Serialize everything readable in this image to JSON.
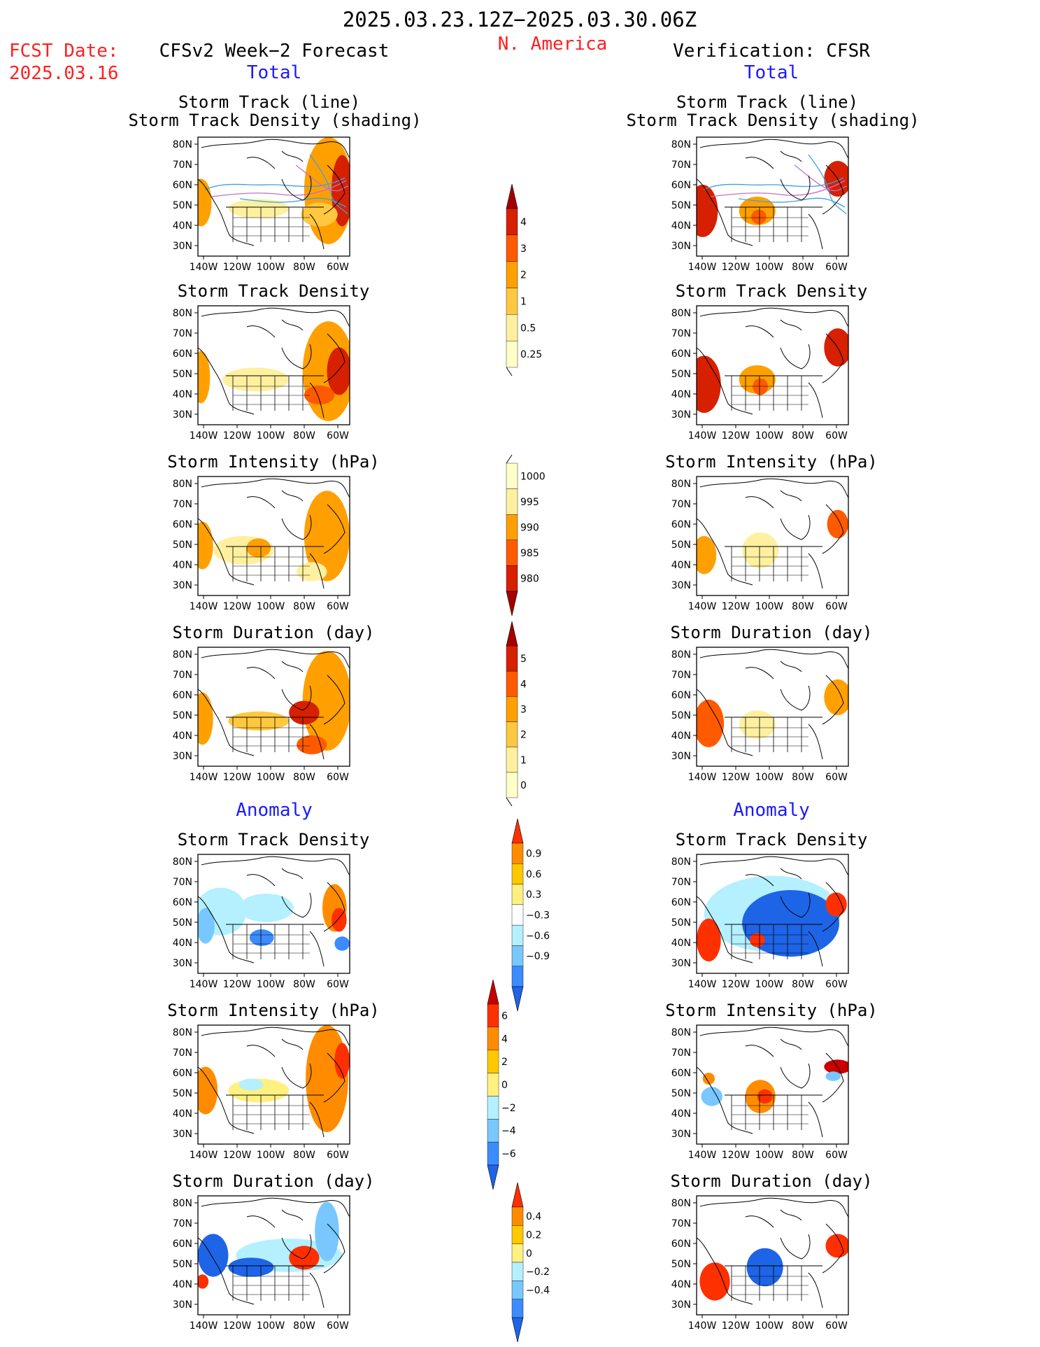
{
  "header": {
    "date_range": "2025.03.23.12Z−2025.03.30.06Z",
    "region": "N. America",
    "fcst_label": "FCST Date:",
    "fcst_date": "2025.03.16",
    "left_title": "CFSv2 Week−2 Forecast",
    "right_title": "Verification: CFSR",
    "total_label": "Total",
    "anomaly_label": "Anomaly"
  },
  "panel_titles": {
    "track_line": "Storm Track (line)",
    "track_shading": "Storm Track Density (shading)",
    "density": "Storm Track Density",
    "intensity": "Storm Intensity (hPa)",
    "duration": "Storm Duration (day)"
  },
  "axes": {
    "lat_labels": [
      "80N",
      "70N",
      "60N",
      "50N",
      "40N",
      "30N"
    ],
    "lon_labels": [
      "140W",
      "120W",
      "100W",
      "80W",
      "60W"
    ]
  },
  "colorbars": {
    "density_total": {
      "labels": [
        "4",
        "3",
        "2",
        "1",
        "0.5",
        "0.25"
      ],
      "colors": [
        "#a50000",
        "#d62000",
        "#ff5a00",
        "#ffa000",
        "#ffc840",
        "#fff0a0",
        "#ffffc8"
      ]
    },
    "intensity_total": {
      "labels": [
        "1000",
        "995",
        "990",
        "985",
        "980"
      ],
      "colors": [
        "#ffffc8",
        "#fff0a0",
        "#ffa000",
        "#ff5a00",
        "#d62000",
        "#a50000"
      ]
    },
    "duration_total": {
      "labels": [
        "5",
        "4",
        "3",
        "2",
        "1",
        "0"
      ],
      "colors": [
        "#a50000",
        "#d62000",
        "#ff5a00",
        "#ffa000",
        "#ffc840",
        "#fff0a0",
        "#ffffc8"
      ]
    },
    "density_anom": {
      "labels": [
        "0.9",
        "0.6",
        "0.3",
        "−0.3",
        "−0.6",
        "−0.9"
      ],
      "colors": [
        "#ff3000",
        "#ff8c00",
        "#ffc800",
        "#fff080",
        "#ffffff",
        "#b4f0ff",
        "#78c8ff",
        "#3c8cff",
        "#1e64e6"
      ]
    },
    "intensity_anom": {
      "labels": [
        "6",
        "4",
        "2",
        "0",
        "−2",
        "−4",
        "−6"
      ],
      "colors": [
        "#c80000",
        "#ff3000",
        "#ff8c00",
        "#ffc800",
        "#fff080",
        "#b4f0ff",
        "#78c8ff",
        "#3c8cff",
        "#1e64e6"
      ]
    },
    "duration_anom": {
      "labels": [
        "0.4",
        "0.2",
        "0",
        "−0.2",
        "−0.4"
      ],
      "colors": [
        "#ff3000",
        "#ff8c00",
        "#ffc800",
        "#fff080",
        "#b4f0ff",
        "#78c8ff",
        "#3c8cff",
        "#1e64e6"
      ]
    }
  },
  "palette": {
    "total": [
      "#ffffc8",
      "#fff0a0",
      "#ffc840",
      "#ffa000",
      "#ff5a00",
      "#d62000",
      "#a50000"
    ],
    "anom_pos": [
      "#fff080",
      "#ffc800",
      "#ff8c00",
      "#ff3000",
      "#c80000"
    ],
    "anom_neg": [
      "#b4f0ff",
      "#78c8ff",
      "#3c8cff",
      "#1e64e6"
    ],
    "track_line": "#3ca0e6",
    "track_line2": "#c86ec8"
  }
}
